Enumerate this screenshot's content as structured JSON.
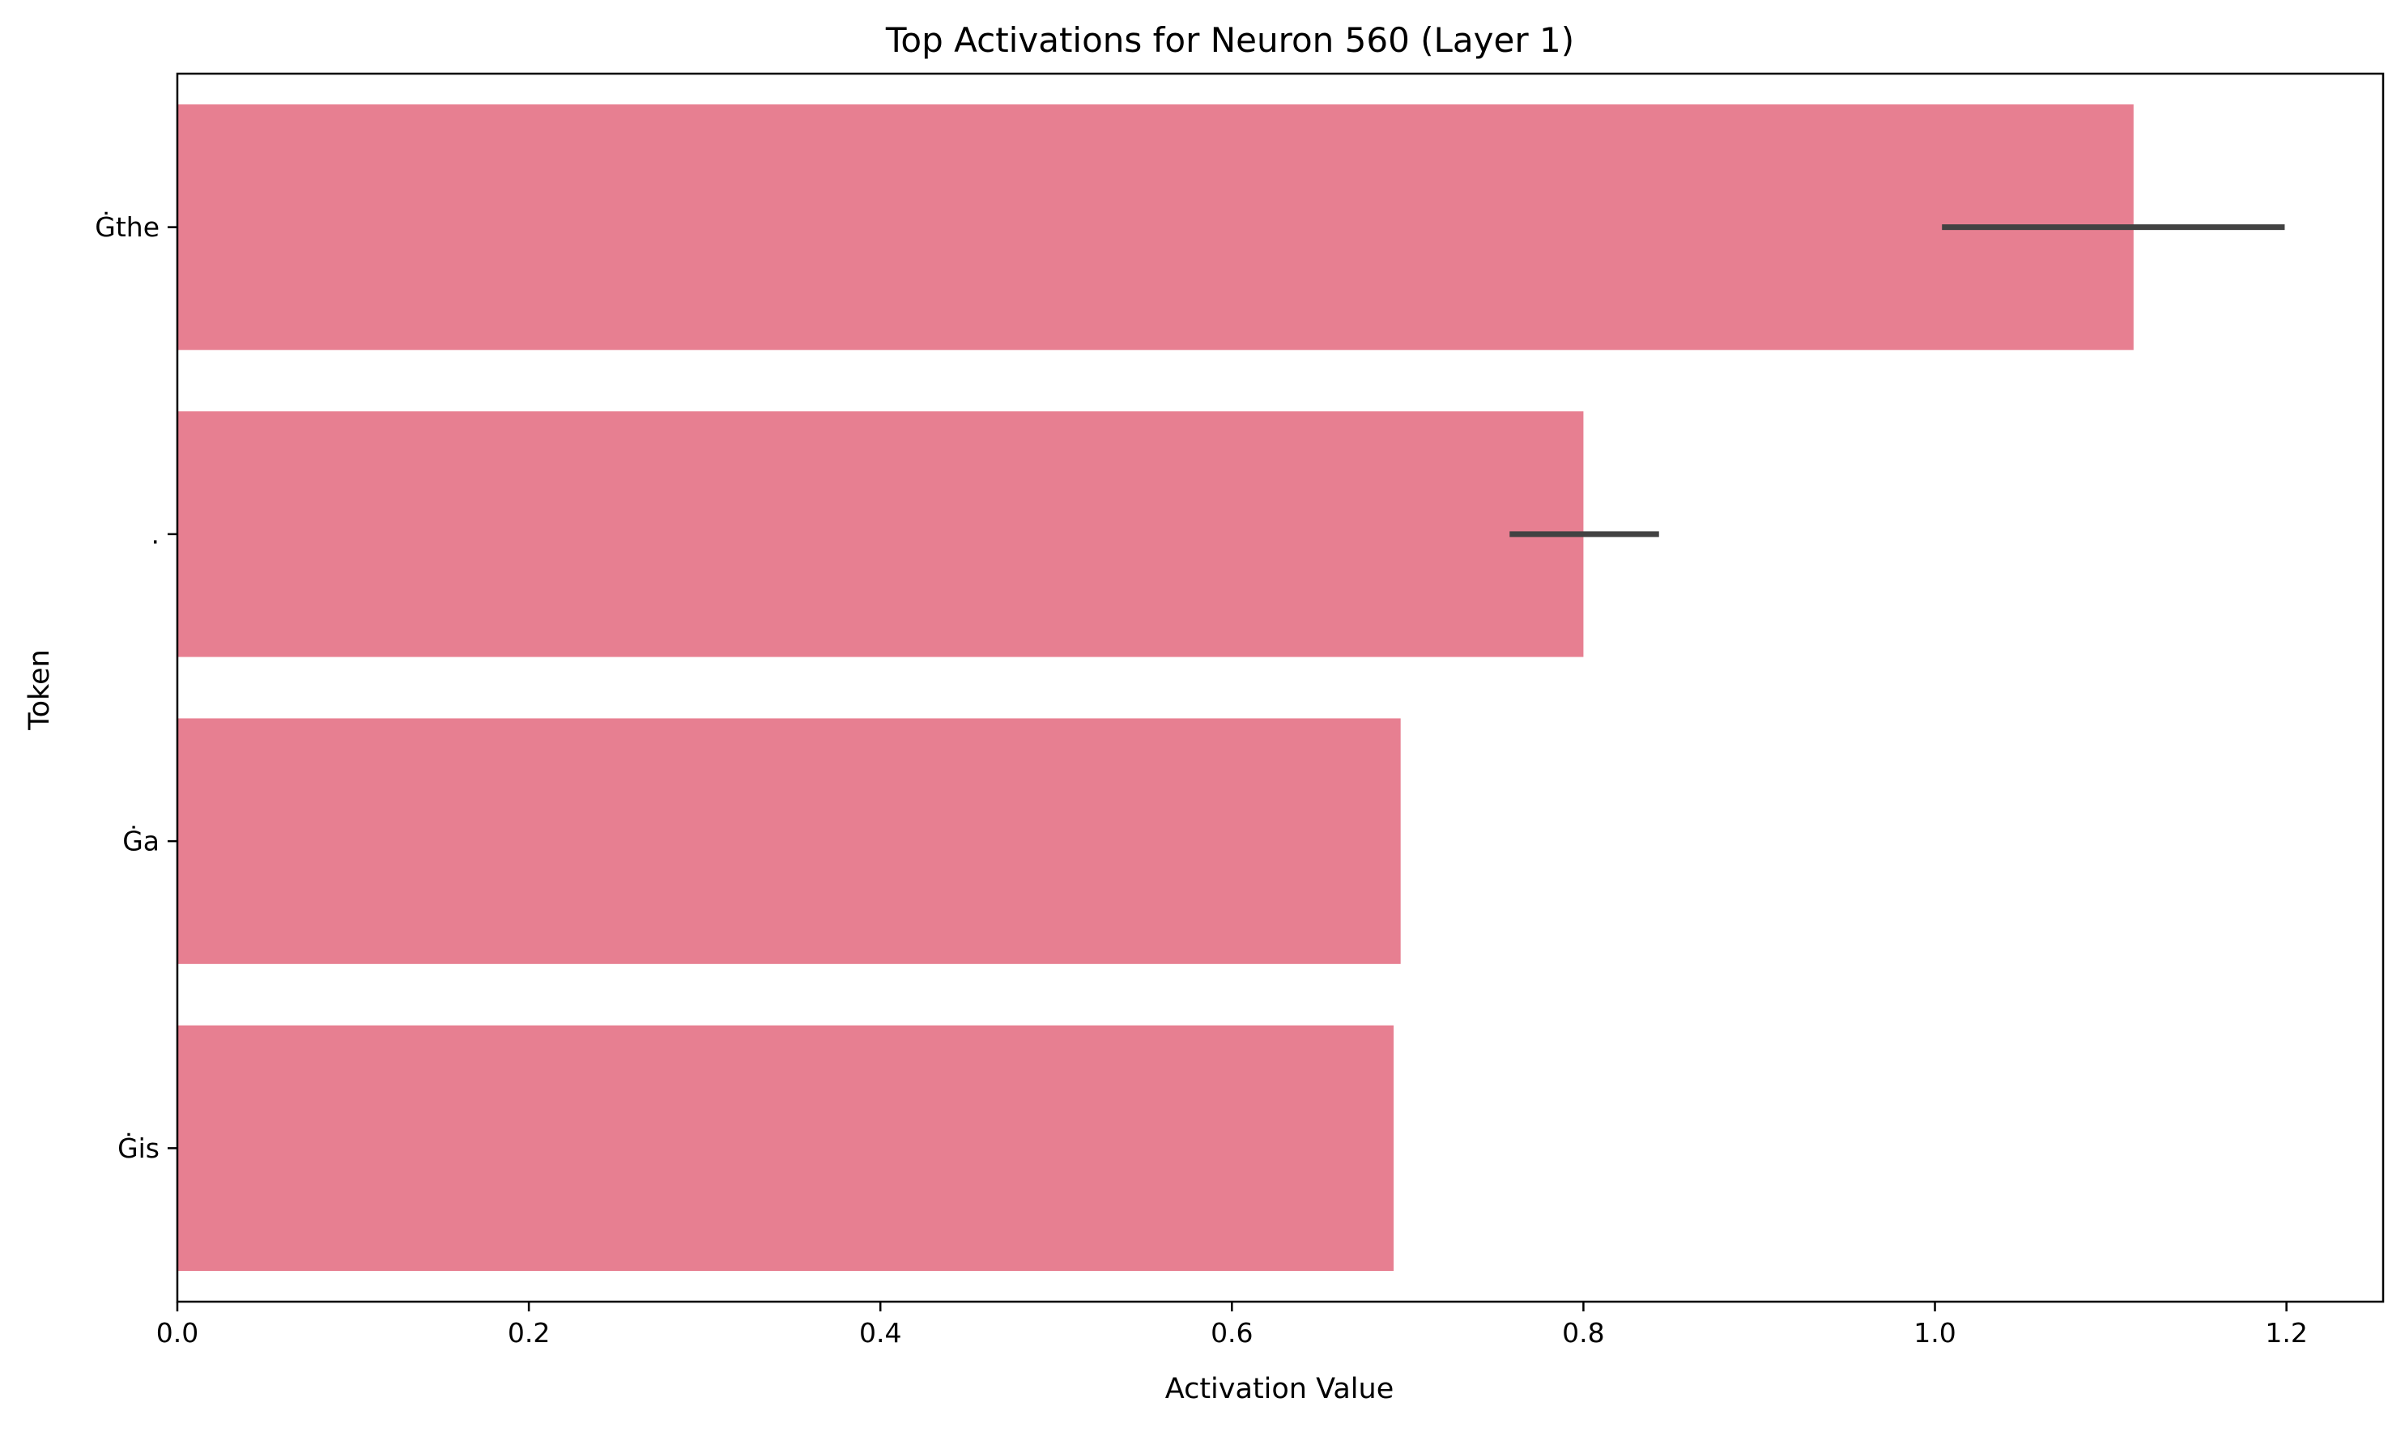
{
  "chart_data": {
    "type": "bar",
    "orientation": "horizontal",
    "title": "Top Activations for Neuron 560 (Layer 1)",
    "xlabel": "Activation Value",
    "ylabel": "Token",
    "categories": [
      "Ġthe",
      ".",
      "Ġa",
      "Ġis"
    ],
    "values": [
      1.113,
      0.8,
      0.696,
      0.692
    ],
    "error_bars": [
      {
        "low": 1.004,
        "high": 1.199
      },
      {
        "low": 0.758,
        "high": 0.843
      },
      null,
      null
    ],
    "xlim": [
      0,
      1.255
    ],
    "xticks": [
      0.0,
      0.2,
      0.4,
      0.6,
      0.8,
      1.0,
      1.2
    ],
    "xtick_labels": [
      "0.0",
      "0.2",
      "0.4",
      "0.6",
      "0.8",
      "1.0",
      "1.2"
    ],
    "grid": false,
    "legend": "none",
    "colors": {
      "bar": "#e77f91",
      "error_bar": "#424242",
      "axis": "#000000"
    }
  }
}
